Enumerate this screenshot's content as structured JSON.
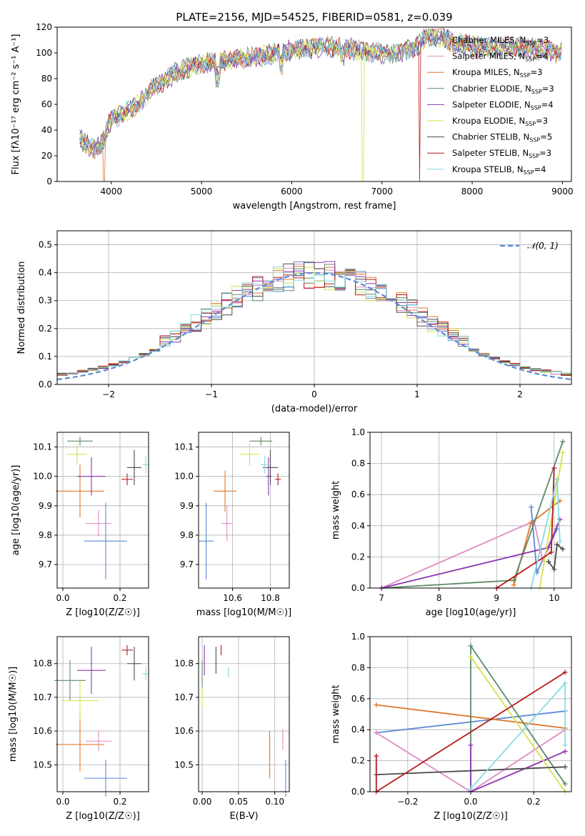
{
  "figure": {
    "title": "PLATE=2156, MJD=54525, FIBERID=0581, z=0.039"
  },
  "legend_entries": [
    {
      "label": "Chabrier MILES, N",
      "sub": "SSP",
      "suffix": "=3",
      "color": "#5a8ad6"
    },
    {
      "label": "Salpeter MILES, N",
      "sub": "SSP",
      "suffix": "=4",
      "color": "#e08cc4"
    },
    {
      "label": "Kroupa MILES, N",
      "sub": "SSP",
      "suffix": "=3",
      "color": "#e0772a"
    },
    {
      "label": "Chabrier ELODIE, N",
      "sub": "SSP",
      "suffix": "=3",
      "color": "#5d8a6a"
    },
    {
      "label": "Salpeter ELODIE, N",
      "sub": "SSP",
      "suffix": "=4",
      "color": "#8e35b0"
    },
    {
      "label": "Kroupa ELODIE, N",
      "sub": "SSP",
      "suffix": "=3",
      "color": "#d6e24a"
    },
    {
      "label": "Chabrier STELIB, N",
      "sub": "SSP",
      "suffix": "=5",
      "color": "#4a4a4a"
    },
    {
      "label": "Salpeter STELIB, N",
      "sub": "SSP",
      "suffix": "=3",
      "color": "#b41c1c"
    },
    {
      "label": "Kroupa STELIB, N",
      "sub": "SSP",
      "suffix": "=4",
      "color": "#86dbe0"
    }
  ],
  "chart_data": [
    {
      "id": "spectrum",
      "type": "line",
      "xlabel": "wavelength [Angstrom, rest frame]",
      "ylabel": "Flux [fλ10⁻¹⁷ erg cm⁻² s⁻¹ A⁻¹]",
      "xlim": [
        3400,
        9100
      ],
      "ylim": [
        0,
        120
      ],
      "xticks": [
        4000,
        5000,
        6000,
        7000,
        8000,
        9000
      ],
      "yticks": [
        0,
        20,
        40,
        60,
        80,
        100,
        120
      ],
      "envelope": {
        "x": [
          3650,
          3700,
          3800,
          3900,
          3950,
          4000,
          4100,
          4200,
          4300,
          4400,
          4500,
          4700,
          4900,
          5000,
          5200,
          5400,
          5600,
          5800,
          6000,
          6200,
          6400,
          6600,
          6800,
          7000,
          7200,
          7400,
          7500,
          7600,
          7800,
          8000,
          8200,
          8400,
          8600,
          8800,
          9000
        ],
        "y": [
          35,
          30,
          25,
          30,
          40,
          48,
          52,
          55,
          60,
          68,
          75,
          84,
          90,
          92,
          93,
          95,
          97,
          99,
          102,
          104,
          105,
          104,
          101,
          100,
          100,
          106,
          113,
          113,
          108,
          105,
          104,
          104,
          104,
          102,
          100
        ]
      },
      "drops": [
        {
          "series": "Kroupa MILES, N_SSP=3",
          "x": 3920,
          "y_min": 0
        },
        {
          "series": "Kroupa ELODIE, N_SSP=3",
          "x": 6790,
          "y_min": 0
        },
        {
          "series": "Salpeter STELIB, N_SSP=3",
          "x": 7420,
          "y_min": 0
        }
      ]
    },
    {
      "id": "residual_distribution",
      "type": "histogram",
      "xlabel": "(data-model)/error",
      "ylabel": "Normed distribution",
      "xlim": [
        -2.5,
        2.5
      ],
      "ylim": [
        0,
        0.55
      ],
      "xticks": [
        -2,
        -1,
        0,
        1,
        2
      ],
      "yticks": [
        0.0,
        0.1,
        0.2,
        0.3,
        0.4,
        0.5
      ],
      "bin_width": 0.1,
      "reference": {
        "name": "N(0,1)",
        "type": "normal",
        "mean": 0,
        "sd": 1
      }
    },
    {
      "id": "age_vs_Z",
      "type": "scatter_errorbar",
      "xlabel": "Z [log10(Z/Z☉)]",
      "ylabel": "age [log10(age/yr)]",
      "xlim": [
        -0.02,
        0.3
      ],
      "ylim": [
        9.62,
        10.15
      ],
      "xticks": [
        0.0,
        0.2
      ],
      "yticks": [
        9.7,
        9.8,
        9.9,
        10.0,
        10.1
      ],
      "points": [
        {
          "x": 0.15,
          "y": 9.78,
          "xerr": 0.075,
          "yerr": 0.13
        },
        {
          "x": 0.125,
          "y": 9.84,
          "xerr": 0.045,
          "yerr": 0.045
        },
        {
          "x": 0.06,
          "y": 9.95,
          "xerr": 0.085,
          "yerr": 0.09
        },
        {
          "x": 0.06,
          "y": 10.12,
          "xerr": 0.045,
          "yerr": 0.015
        },
        {
          "x": 0.1,
          "y": 10.0,
          "xerr": 0.05,
          "yerr": 0.065
        },
        {
          "x": 0.05,
          "y": 10.075,
          "xerr": 0.035,
          "yerr": 0.035
        },
        {
          "x": 0.25,
          "y": 10.03,
          "xerr": 0.025,
          "yerr": 0.06
        },
        {
          "x": 0.225,
          "y": 9.99,
          "xerr": 0.02,
          "yerr": 0.02
        },
        {
          "x": 0.29,
          "y": 10.04,
          "xerr": 0.012,
          "yerr": 0.03
        }
      ]
    },
    {
      "id": "age_vs_mass",
      "type": "scatter_errorbar",
      "xlabel": "mass [log10(M/M☉)]",
      "ylabel": "",
      "xlim": [
        10.42,
        10.9
      ],
      "ylim": [
        9.62,
        10.15
      ],
      "xticks": [
        10.6,
        10.8
      ],
      "yticks": [
        9.7,
        9.8,
        9.9,
        10.0,
        10.1
      ],
      "points": [
        {
          "x": 10.46,
          "y": 9.78,
          "xerr": 0.04,
          "yerr": 0.13
        },
        {
          "x": 10.57,
          "y": 9.84,
          "xerr": 0.03,
          "yerr": 0.06
        },
        {
          "x": 10.56,
          "y": 9.95,
          "xerr": 0.06,
          "yerr": 0.07
        },
        {
          "x": 10.75,
          "y": 10.12,
          "xerr": 0.06,
          "yerr": 0.015
        },
        {
          "x": 10.79,
          "y": 10.0,
          "xerr": 0.015,
          "yerr": 0.065
        },
        {
          "x": 10.69,
          "y": 10.075,
          "xerr": 0.05,
          "yerr": 0.04
        },
        {
          "x": 10.8,
          "y": 10.03,
          "xerr": 0.04,
          "yerr": 0.06
        },
        {
          "x": 10.84,
          "y": 9.99,
          "xerr": 0.015,
          "yerr": 0.02
        },
        {
          "x": 10.77,
          "y": 10.04,
          "xerr": 0.02,
          "yerr": 0.03
        }
      ]
    },
    {
      "id": "massweight_vs_age",
      "type": "line",
      "xlabel": "age [log10(age/yr)]",
      "ylabel": "mass weight",
      "xlim": [
        6.8,
        10.3
      ],
      "ylim": [
        0,
        1.0
      ],
      "xticks": [
        7,
        8,
        9,
        10
      ],
      "yticks": [
        0.0,
        0.2,
        0.4,
        0.6,
        0.8,
        1.0
      ],
      "series": [
        {
          "points": [
            [
              9.6,
              0.52
            ],
            [
              9.7,
              0.1
            ],
            [
              10.05,
              0.38
            ]
          ]
        },
        {
          "points": [
            [
              7.0,
              0.0
            ],
            [
              9.65,
              0.43
            ],
            [
              9.8,
              0.18
            ],
            [
              10.05,
              0.4
            ]
          ]
        },
        {
          "points": [
            [
              9.3,
              0.02
            ],
            [
              9.6,
              0.42
            ],
            [
              10.1,
              0.56
            ]
          ]
        },
        {
          "points": [
            [
              7.0,
              0.0
            ],
            [
              9.3,
              0.05
            ],
            [
              10.15,
              0.94
            ]
          ]
        },
        {
          "points": [
            [
              7.0,
              0.0
            ],
            [
              9.9,
              0.26
            ],
            [
              10.1,
              0.44
            ]
          ]
        },
        {
          "points": [
            [
              9.75,
              0.0
            ],
            [
              10.15,
              0.87
            ]
          ]
        },
        {
          "points": [
            [
              9.9,
              0.17
            ],
            [
              10.0,
              0.12
            ],
            [
              10.05,
              0.28
            ],
            [
              10.15,
              0.25
            ]
          ]
        },
        {
          "points": [
            [
              9.0,
              0.0
            ],
            [
              9.95,
              0.23
            ],
            [
              10.0,
              0.77
            ]
          ]
        },
        {
          "points": [
            [
              9.6,
              0.0
            ],
            [
              10.05,
              0.7
            ],
            [
              10.1,
              0.3
            ]
          ]
        }
      ]
    },
    {
      "id": "mass_vs_Z",
      "type": "scatter_errorbar",
      "xlabel": "Z [log10(Z/Z☉)]",
      "ylabel": "mass [log10(M/M☉)]",
      "xlim": [
        -0.02,
        0.3
      ],
      "ylim": [
        10.42,
        10.88
      ],
      "xticks": [
        0.0,
        0.2
      ],
      "yticks": [
        10.5,
        10.6,
        10.7,
        10.8
      ],
      "points": [
        {
          "x": 0.15,
          "y": 10.46,
          "xerr": 0.075,
          "yerr": 0.055
        },
        {
          "x": 0.125,
          "y": 10.57,
          "xerr": 0.045,
          "yerr": 0.03
        },
        {
          "x": 0.06,
          "y": 10.56,
          "xerr": 0.085,
          "yerr": 0.08
        },
        {
          "x": 0.025,
          "y": 10.75,
          "xerr": 0.055,
          "yerr": 0.06
        },
        {
          "x": 0.1,
          "y": 10.78,
          "xerr": 0.05,
          "yerr": 0.07
        },
        {
          "x": 0.06,
          "y": 10.69,
          "xerr": 0.065,
          "yerr": 0.06
        },
        {
          "x": 0.25,
          "y": 10.8,
          "xerr": 0.025,
          "yerr": 0.05
        },
        {
          "x": 0.225,
          "y": 10.84,
          "xerr": 0.02,
          "yerr": 0.015
        },
        {
          "x": 0.29,
          "y": 10.77,
          "xerr": 0.012,
          "yerr": 0.02
        }
      ]
    },
    {
      "id": "mass_vs_EBV",
      "type": "scatter_errorbar",
      "xlabel": "E(B-V)",
      "ylabel": "",
      "xlim": [
        -0.005,
        0.12
      ],
      "ylim": [
        10.42,
        10.88
      ],
      "xticks": [
        0.0,
        0.05,
        0.1
      ],
      "yticks": [
        10.5,
        10.6,
        10.7,
        10.8
      ],
      "points": [
        {
          "x": 0.115,
          "y": 10.46,
          "xerr": 0,
          "yerr": 0.055
        },
        {
          "x": 0.111,
          "y": 10.575,
          "xerr": 0,
          "yerr": 0.03
        },
        {
          "x": 0.093,
          "y": 10.53,
          "xerr": 0,
          "yerr": 0.07
        },
        {
          "x": 0.0,
          "y": 10.76,
          "xerr": 0,
          "yerr": 0.05
        },
        {
          "x": 0.003,
          "y": 10.81,
          "xerr": 0,
          "yerr": 0.045
        },
        {
          "x": 0.0,
          "y": 10.7,
          "xerr": 0,
          "yerr": 0.03
        },
        {
          "x": 0.019,
          "y": 10.81,
          "xerr": 0,
          "yerr": 0.04
        },
        {
          "x": 0.026,
          "y": 10.84,
          "xerr": 0,
          "yerr": 0.015
        },
        {
          "x": 0.036,
          "y": 10.775,
          "xerr": 0,
          "yerr": 0.015
        }
      ]
    },
    {
      "id": "massweight_vs_Z",
      "type": "line",
      "xlabel": "Z [log10(Z/Z☉)]",
      "ylabel": "mass weight",
      "xlim": [
        -0.32,
        0.32
      ],
      "ylim": [
        0,
        1.0
      ],
      "xticks": [
        -0.2,
        0.0,
        0.2
      ],
      "yticks": [
        0.0,
        0.2,
        0.4,
        0.6,
        0.8,
        1.0
      ],
      "series": [
        {
          "points": [
            [
              -0.3,
              0.38
            ],
            [
              0.0,
              0.45
            ],
            [
              0.3,
              0.52
            ]
          ]
        },
        {
          "points": [
            [
              -0.3,
              0.38
            ],
            [
              0.0,
              0.0
            ],
            [
              0.3,
              0.4
            ]
          ]
        },
        {
          "points": [
            [
              -0.3,
              0.56
            ],
            [
              0.3,
              0.41
            ]
          ]
        },
        {
          "points": [
            [
              0.0,
              0.0
            ],
            [
              0.0,
              0.94
            ],
            [
              0.3,
              0.05
            ]
          ]
        },
        {
          "points": [
            [
              0.0,
              0.3
            ],
            [
              0.0,
              0.0
            ],
            [
              0.3,
              0.26
            ]
          ]
        },
        {
          "points": [
            [
              0.0,
              0.87
            ],
            [
              0.3,
              0.0
            ]
          ]
        },
        {
          "points": [
            [
              -0.3,
              0.11
            ],
            [
              0.3,
              0.16
            ]
          ]
        },
        {
          "points": [
            [
              -0.3,
              0.23
            ],
            [
              -0.3,
              0.0
            ],
            [
              0.3,
              0.77
            ]
          ]
        },
        {
          "points": [
            [
              0.0,
              0.02
            ],
            [
              0.3,
              0.7
            ],
            [
              0.3,
              0.3
            ]
          ]
        }
      ]
    }
  ]
}
